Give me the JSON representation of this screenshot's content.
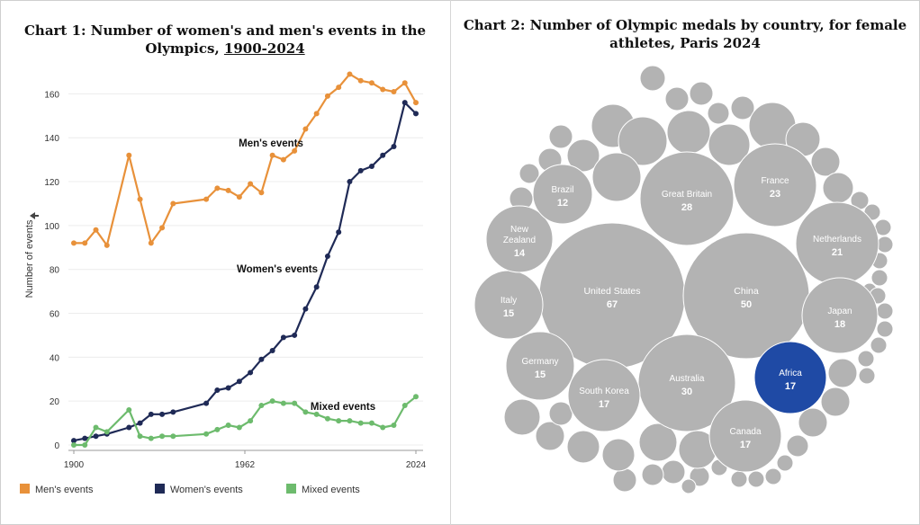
{
  "chart_data": [
    {
      "type": "line",
      "title": "Chart 1: Number of women's and men's events in the Olympics,",
      "title_years": "1900-2024",
      "ylabel": "Number of events",
      "xlabel": "",
      "ylim": [
        0,
        170
      ],
      "y_ticks": [
        0,
        20,
        40,
        60,
        80,
        100,
        120,
        140,
        160
      ],
      "x_ticks": [
        "1900",
        "1962",
        "2024"
      ],
      "grid": true,
      "legend_position": "bottom",
      "series": [
        {
          "name": "Men's events",
          "color": "#e8913a",
          "annotation": "Men's events",
          "values": [
            [
              1900,
              92
            ],
            [
              1904,
              92
            ],
            [
              1908,
              98
            ],
            [
              1912,
              91
            ],
            [
              1920,
              132
            ],
            [
              1924,
              112
            ],
            [
              1928,
              92
            ],
            [
              1932,
              99
            ],
            [
              1936,
              110
            ],
            [
              1948,
              112
            ],
            [
              1952,
              117
            ],
            [
              1956,
              116
            ],
            [
              1960,
              113
            ],
            [
              1964,
              119
            ],
            [
              1968,
              115
            ],
            [
              1972,
              132
            ],
            [
              1976,
              130
            ],
            [
              1980,
              134
            ],
            [
              1984,
              144
            ],
            [
              1988,
              151
            ],
            [
              1992,
              159
            ],
            [
              1996,
              163
            ],
            [
              2000,
              169
            ],
            [
              2004,
              166
            ],
            [
              2008,
              165
            ],
            [
              2012,
              162
            ],
            [
              2016,
              161
            ],
            [
              2020,
              165
            ],
            [
              2024,
              156
            ]
          ]
        },
        {
          "name": "Women's events",
          "color": "#1f2a56",
          "annotation": "Women's events",
          "values": [
            [
              1900,
              2
            ],
            [
              1904,
              3
            ],
            [
              1908,
              4
            ],
            [
              1912,
              5
            ],
            [
              1920,
              8
            ],
            [
              1924,
              10
            ],
            [
              1928,
              14
            ],
            [
              1932,
              14
            ],
            [
              1936,
              15
            ],
            [
              1948,
              19
            ],
            [
              1952,
              25
            ],
            [
              1956,
              26
            ],
            [
              1960,
              29
            ],
            [
              1964,
              33
            ],
            [
              1968,
              39
            ],
            [
              1972,
              43
            ],
            [
              1976,
              49
            ],
            [
              1980,
              50
            ],
            [
              1984,
              62
            ],
            [
              1988,
              72
            ],
            [
              1992,
              86
            ],
            [
              1996,
              97
            ],
            [
              2000,
              120
            ],
            [
              2004,
              125
            ],
            [
              2008,
              127
            ],
            [
              2012,
              132
            ],
            [
              2016,
              136
            ],
            [
              2020,
              156
            ],
            [
              2024,
              151
            ]
          ]
        },
        {
          "name": "Mixed events",
          "color": "#6dbb6d",
          "annotation": "Mixed events",
          "values": [
            [
              1900,
              0
            ],
            [
              1904,
              0
            ],
            [
              1908,
              8
            ],
            [
              1912,
              6
            ],
            [
              1920,
              16
            ],
            [
              1924,
              4
            ],
            [
              1928,
              3
            ],
            [
              1932,
              4
            ],
            [
              1936,
              4
            ],
            [
              1948,
              5
            ],
            [
              1952,
              7
            ],
            [
              1956,
              9
            ],
            [
              1960,
              8
            ],
            [
              1964,
              11
            ],
            [
              1968,
              18
            ],
            [
              1972,
              20
            ],
            [
              1976,
              19
            ],
            [
              1980,
              19
            ],
            [
              1984,
              15
            ],
            [
              1988,
              14
            ],
            [
              1992,
              12
            ],
            [
              1996,
              11
            ],
            [
              2000,
              11
            ],
            [
              2004,
              10
            ],
            [
              2008,
              10
            ],
            [
              2012,
              8
            ],
            [
              2016,
              9
            ],
            [
              2020,
              18
            ],
            [
              2024,
              22
            ]
          ]
        }
      ]
    },
    {
      "type": "bubble",
      "title": "Chart 2: Number of Olympic medals by country, for female athletes, Paris 2024",
      "default_color": "#b3b3b3",
      "highlight_color": "#1f4aa5",
      "labeled": [
        {
          "name": "United States",
          "value": 67,
          "highlight": false
        },
        {
          "name": "China",
          "value": 50,
          "highlight": false
        },
        {
          "name": "Australia",
          "value": 30,
          "highlight": false
        },
        {
          "name": "Great Britain",
          "value": 28,
          "highlight": false
        },
        {
          "name": "France",
          "value": 23,
          "highlight": false
        },
        {
          "name": "Netherlands",
          "value": 21,
          "highlight": false
        },
        {
          "name": "Japan",
          "value": 18,
          "highlight": false
        },
        {
          "name": "Africa",
          "value": 17,
          "highlight": true
        },
        {
          "name": "South Korea",
          "value": 17,
          "highlight": false
        },
        {
          "name": "Canada",
          "value": 17,
          "highlight": false
        },
        {
          "name": "Italy",
          "value": 15,
          "highlight": false
        },
        {
          "name": "Germany",
          "value": 15,
          "highlight": false
        },
        {
          "name": "New Zealand",
          "value": 14,
          "highlight": false
        },
        {
          "name": "Brazil",
          "value": 12,
          "highlight": false
        }
      ]
    }
  ]
}
